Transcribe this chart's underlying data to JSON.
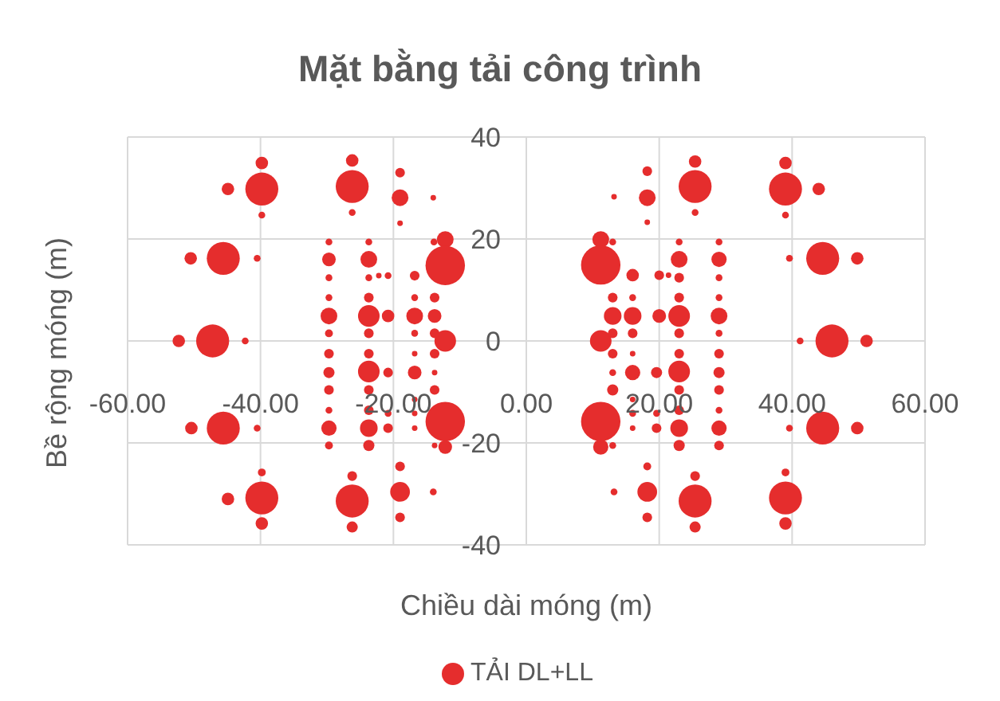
{
  "chart_data": {
    "type": "bubble",
    "title": "Mặt bằng tải công trình",
    "xlabel": "Chiều dài móng (m)",
    "ylabel": "Bề rộng móng (m)",
    "xlim": [
      -60,
      60
    ],
    "xticks": [
      {
        "value": -60,
        "label": "-60.00"
      },
      {
        "value": -40,
        "label": "-40.00"
      },
      {
        "value": -20,
        "label": "-20.00"
      },
      {
        "value": 0,
        "label": "0.00"
      },
      {
        "value": 20,
        "label": "20.00"
      },
      {
        "value": 40,
        "label": "40.00"
      },
      {
        "value": 60,
        "label": "60.00"
      }
    ],
    "ylim": [
      -40,
      40
    ],
    "yticks": [
      -40,
      -20,
      0,
      20,
      40
    ],
    "grid": true,
    "legend": "bottom",
    "series": [
      {
        "name": "TẢI DL+LL",
        "color": "#e52d2d",
        "x": [
          -39.8,
          -39.8,
          -44.9,
          -39.8,
          -26.2,
          -26.2,
          -26.2,
          -19,
          -19,
          -19,
          -14,
          -12.2,
          -12.2,
          -13.9,
          -45.6,
          -50.5,
          -40.5,
          -47.2,
          -52.3,
          -42.3,
          -12.2,
          -29.7,
          -29.7,
          -29.7,
          -29.7,
          -29.7,
          -29.7,
          -23.7,
          -23.7,
          -23.7,
          -23.7,
          -23.7,
          -23.7,
          -20.8,
          -20.8,
          -22.2,
          -16.8,
          -16.8,
          -16.8,
          -16.8,
          -13.8,
          -13.8,
          -13.8,
          -29.7,
          -29.7,
          -29.7,
          -29.7,
          -29.7,
          -29.7,
          -23.7,
          -23.7,
          -23.7,
          -23.7,
          -23.7,
          -23.7,
          -20.8,
          -20.8,
          -20.8,
          -16.8,
          -16.8,
          -16.8,
          -16.8,
          -16.8,
          -13.8,
          -13.8,
          -13.8,
          -13.8,
          -12.2,
          -12.2,
          -45.6,
          -50.4,
          -40.5,
          -39.8,
          -39.8,
          -39.8,
          -44.9,
          -26.2,
          -26.2,
          -26.2,
          -19,
          -19,
          -19,
          -14,
          25.4,
          25.4,
          25.4,
          39,
          39,
          39,
          44,
          18.2,
          18.2,
          18.2,
          13.2,
          11.2,
          11.2,
          13,
          44.6,
          49.8,
          39.6,
          46,
          51.2,
          41.2,
          11.2,
          23,
          23,
          23,
          23,
          23,
          23,
          29,
          29,
          29,
          29,
          29,
          29,
          20,
          20,
          21.4,
          16,
          16,
          16,
          16,
          13,
          13,
          13,
          13,
          13,
          13,
          13,
          11.2,
          11.2,
          16,
          16,
          16,
          16,
          16,
          19.6,
          19.6,
          19.6,
          23,
          23,
          23,
          23,
          23,
          23,
          29,
          29,
          29,
          29,
          29,
          29,
          39.6,
          44.6,
          49.8,
          18.2,
          18.2,
          18.2,
          13.2,
          25.4,
          25.4,
          25.4,
          39,
          39,
          39
        ],
        "values": [
          34.9,
          29.8,
          29.8,
          24.7,
          35.4,
          30.3,
          25.2,
          33,
          28.1,
          23.1,
          28.1,
          19.9,
          14.8,
          19.4,
          16.2,
          16.2,
          16.2,
          0,
          0,
          0,
          0,
          19.4,
          16,
          12.4,
          8.5,
          4.9,
          1.5,
          19.4,
          16,
          12.4,
          8.5,
          4.9,
          1.5,
          12.8,
          4.9,
          12.8,
          12.8,
          8.5,
          4.9,
          1.5,
          8.5,
          4.9,
          1.5,
          -2.5,
          -6.2,
          -9.6,
          -13.6,
          -17.1,
          -20.5,
          -2.5,
          -6,
          -9.6,
          -13.6,
          -17.1,
          -20.5,
          -6.2,
          -14.2,
          -17.1,
          -2.5,
          -6.2,
          -11.5,
          -14.2,
          -17.1,
          -2.5,
          -6.2,
          -9.6,
          -20.5,
          -15.8,
          -20.8,
          -17.1,
          -17.1,
          -17.1,
          -25.8,
          -30.8,
          -35.8,
          -31,
          -26.5,
          -31.4,
          -36.5,
          -24.6,
          -29.6,
          -34.6,
          -29.6,
          35.2,
          30.3,
          25.2,
          34.9,
          29.8,
          24.7,
          29.8,
          33.3,
          28.1,
          23.3,
          28.3,
          19.9,
          14.9,
          19.4,
          16.2,
          16.2,
          16.2,
          0,
          0,
          0,
          0,
          19.4,
          16,
          12.4,
          8.5,
          4.9,
          1.5,
          19.4,
          16,
          12.4,
          8.5,
          4.9,
          1.5,
          12.9,
          4.9,
          12.9,
          12.9,
          8.5,
          4.9,
          1.5,
          8.5,
          4.9,
          1.5,
          -2.5,
          -6.2,
          -9.6,
          -20.5,
          -15.8,
          -20.8,
          -2.5,
          -6.2,
          -11.5,
          -14.2,
          -17.1,
          -6.2,
          -14.2,
          -17.1,
          -2.5,
          -6,
          -9.6,
          -13.6,
          -17.1,
          -20.5,
          -2.5,
          -6.2,
          -9.6,
          -13.6,
          -17.1,
          -20.5,
          -17.1,
          -17.1,
          -17.1,
          -24.6,
          -29.6,
          -34.6,
          -29.6,
          -26.5,
          -31.4,
          -36.5,
          -25.8,
          -30.8,
          -35.8
        ],
        "sizes": [
          0.1,
          0.7,
          0.1,
          0.03,
          0.1,
          0.7,
          0.03,
          0.06,
          0.18,
          0.02,
          0.02,
          0.18,
          1,
          0.03,
          0.7,
          0.1,
          0.03,
          0.7,
          0.1,
          0.03,
          0.3,
          0.03,
          0.12,
          0.03,
          0.03,
          0.18,
          0.04,
          0.03,
          0.18,
          0.03,
          0.06,
          0.3,
          0.06,
          0.03,
          0.1,
          0.02,
          0.06,
          0.03,
          0.18,
          0.03,
          0.06,
          0.12,
          0.06,
          0.06,
          0.08,
          0.06,
          0.03,
          0.15,
          0.04,
          0.06,
          0.3,
          0.06,
          0.06,
          0.2,
          0.08,
          0.06,
          0.03,
          0.06,
          0.02,
          0.12,
          0.02,
          0.02,
          0.02,
          0.06,
          0.02,
          0.06,
          0.02,
          1,
          0.12,
          0.7,
          0.1,
          0.03,
          0.04,
          0.7,
          0.1,
          0.1,
          0.06,
          0.7,
          0.08,
          0.06,
          0.25,
          0.06,
          0.03,
          0.1,
          0.7,
          0.03,
          0.1,
          0.7,
          0.03,
          0.1,
          0.06,
          0.18,
          0.02,
          0.02,
          0.18,
          1,
          0.03,
          0.7,
          0.1,
          0.03,
          0.7,
          0.1,
          0.03,
          0.3,
          0.03,
          0.18,
          0.06,
          0.06,
          0.3,
          0.06,
          0.03,
          0.15,
          0.03,
          0.03,
          0.18,
          0.03,
          0.06,
          0.12,
          0.02,
          0.1,
          0.03,
          0.2,
          0.06,
          0.06,
          0.2,
          0.06,
          0.06,
          0.03,
          0.08,
          0.03,
          1,
          0.15,
          0.02,
          0.15,
          0.02,
          0.03,
          0.02,
          0.08,
          0.03,
          0.06,
          0.06,
          0.3,
          0.06,
          0.06,
          0.2,
          0.08,
          0.06,
          0.08,
          0.06,
          0.03,
          0.15,
          0.06,
          0.03,
          0.7,
          0.1,
          0.04,
          0.25,
          0.06,
          0.03,
          0.06,
          0.7,
          0.08,
          0.04,
          0.7,
          0.1
        ]
      }
    ]
  }
}
